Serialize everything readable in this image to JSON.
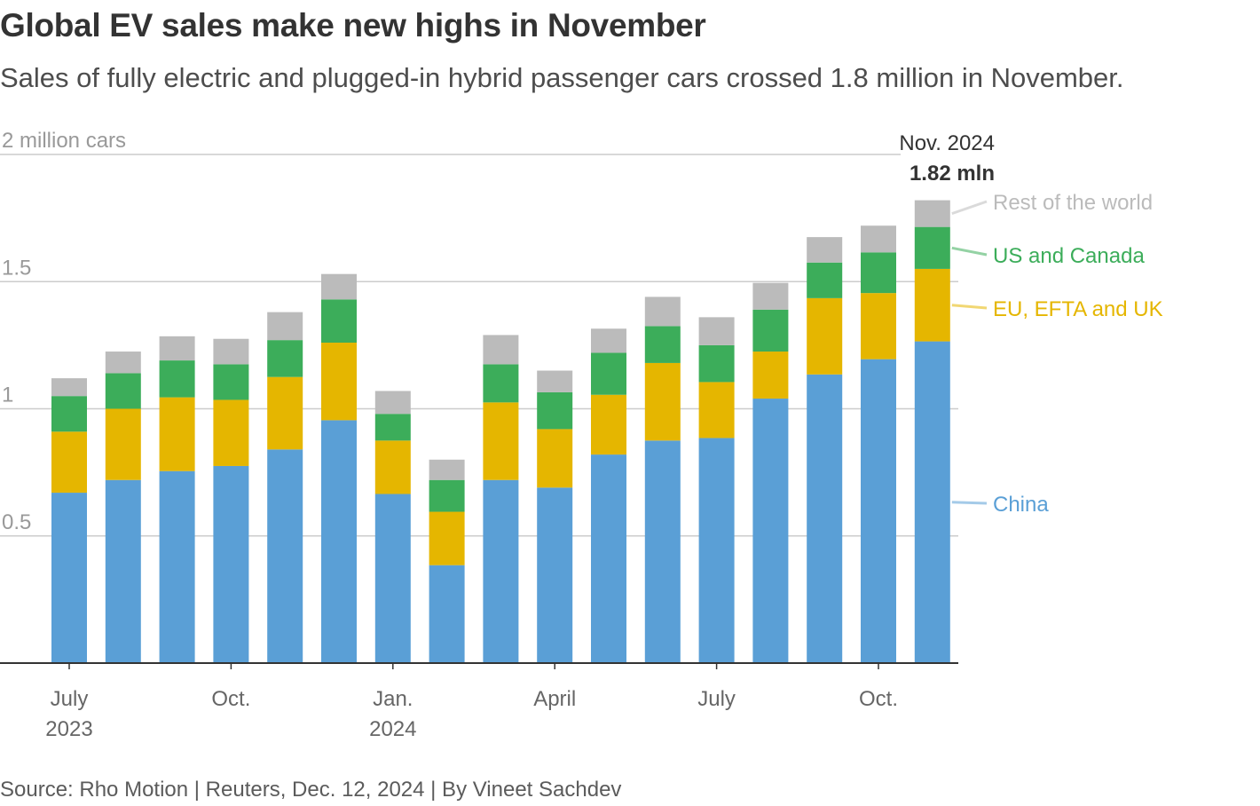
{
  "title": "Global EV sales make new highs in November",
  "subtitle": "Sales of fully electric and plugged-in hybrid passenger cars crossed 1.8 million in November.",
  "source": "Source: Rho Motion | Reuters, Dec. 12, 2024 | By Vineet Sachdev",
  "annotation": {
    "period": "Nov. 2024",
    "value": "1.82 mln"
  },
  "colors": {
    "china": "#5a9fd6",
    "eu": "#e5b600",
    "us": "#3cad5a",
    "rest": "#bbbbbb",
    "grid": "#cccccc",
    "axis": "#333333",
    "tick_text": "#666666",
    "y_text": "#999999"
  },
  "chart_data": {
    "type": "bar",
    "stacked": true,
    "y_unit_label": "2 million cars",
    "y_ticks": [
      {
        "value": 0.5,
        "label": "0.5"
      },
      {
        "value": 1,
        "label": "1"
      },
      {
        "value": 1.5,
        "label": "1.5"
      },
      {
        "value": 2,
        "label": "2 million cars"
      }
    ],
    "ylim": [
      0,
      2
    ],
    "grid": true,
    "categories": [
      "2023-07",
      "2023-08",
      "2023-09",
      "2023-10",
      "2023-11",
      "2023-12",
      "2024-01",
      "2024-02",
      "2024-03",
      "2024-04",
      "2024-05",
      "2024-06",
      "2024-07",
      "2024-08",
      "2024-09",
      "2024-10",
      "2024-11"
    ],
    "x_tick_labels": [
      {
        "index": 0,
        "lines": [
          "July",
          "2023"
        ]
      },
      {
        "index": 3,
        "lines": [
          "Oct.",
          ""
        ]
      },
      {
        "index": 6,
        "lines": [
          "Jan.",
          "2024"
        ]
      },
      {
        "index": 9,
        "lines": [
          "April",
          ""
        ]
      },
      {
        "index": 12,
        "lines": [
          "July",
          ""
        ]
      },
      {
        "index": 15,
        "lines": [
          "Oct.",
          ""
        ]
      }
    ],
    "series": [
      {
        "name": "China",
        "color_key": "china",
        "values": [
          0.67,
          0.72,
          0.755,
          0.775,
          0.84,
          0.955,
          0.665,
          0.385,
          0.72,
          0.69,
          0.82,
          0.875,
          0.885,
          1.04,
          1.135,
          1.195,
          1.265
        ]
      },
      {
        "name": "EU, EFTA and UK",
        "color_key": "eu",
        "values": [
          0.24,
          0.28,
          0.29,
          0.26,
          0.285,
          0.305,
          0.21,
          0.21,
          0.305,
          0.23,
          0.235,
          0.305,
          0.22,
          0.185,
          0.3,
          0.26,
          0.285
        ]
      },
      {
        "name": "US and Canada",
        "color_key": "us",
        "values": [
          0.14,
          0.14,
          0.145,
          0.14,
          0.145,
          0.17,
          0.105,
          0.125,
          0.15,
          0.145,
          0.165,
          0.145,
          0.145,
          0.165,
          0.14,
          0.16,
          0.165
        ]
      },
      {
        "name": "Rest of the world",
        "color_key": "rest",
        "values": [
          0.07,
          0.085,
          0.095,
          0.1,
          0.11,
          0.1,
          0.09,
          0.08,
          0.115,
          0.085,
          0.095,
          0.115,
          0.11,
          0.105,
          0.1,
          0.105,
          0.105
        ]
      }
    ]
  }
}
